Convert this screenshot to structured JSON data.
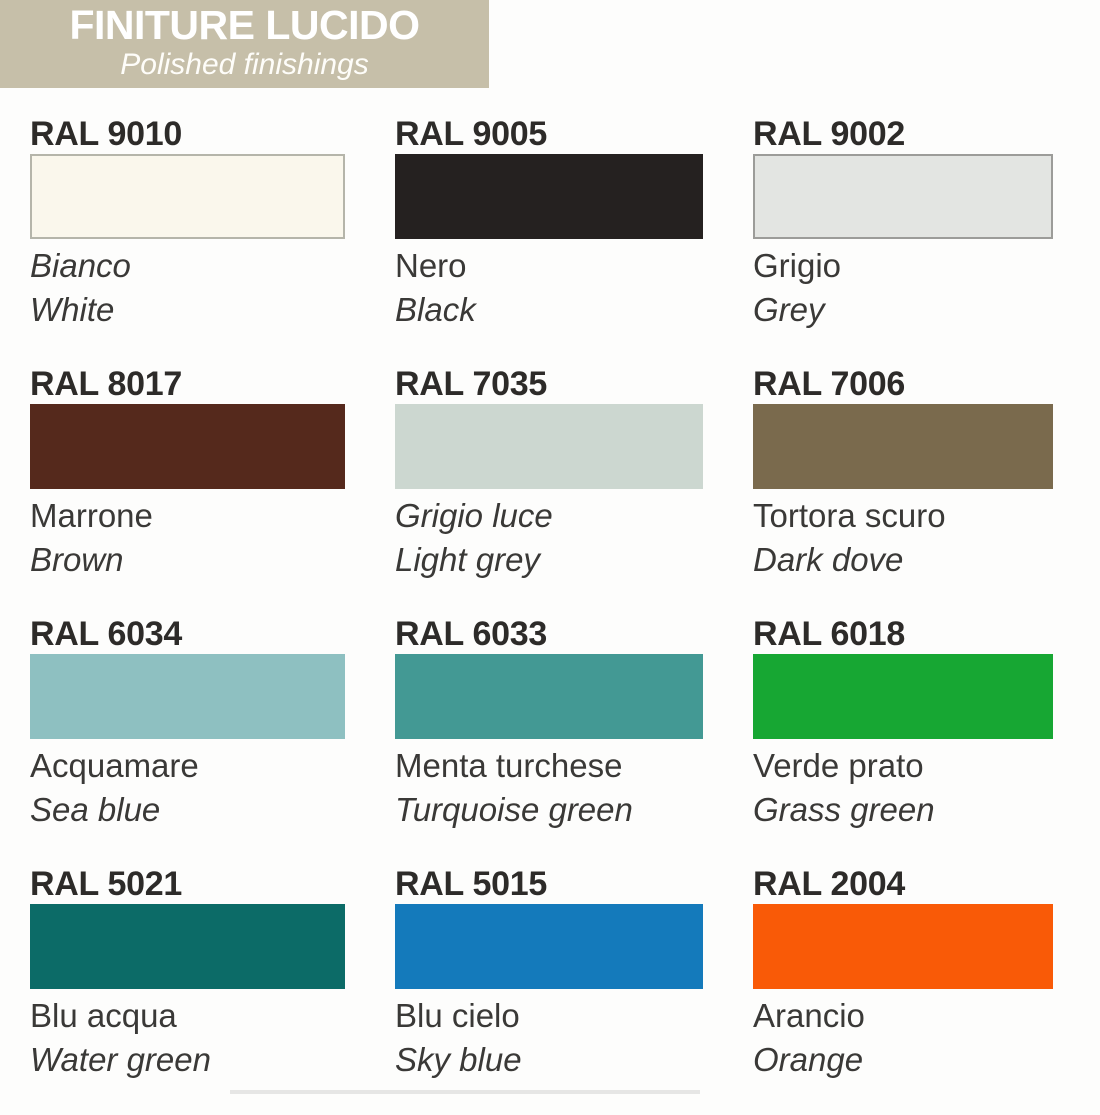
{
  "header": {
    "title": "FINITURE LUCIDO",
    "subtitle": "Polished finishings",
    "background": "#c6bfa9",
    "text_color": "#ffffff"
  },
  "swatches": [
    {
      "code": "RAL 9010",
      "name_it": "Bianco",
      "name_en": "White",
      "color": "#faf7ec",
      "border": "#b5b5aa",
      "name_it_style": "italic"
    },
    {
      "code": "RAL 9005",
      "name_it": "Nero",
      "name_en": "Black",
      "color": "#252120",
      "border": "",
      "name_it_style": "normal"
    },
    {
      "code": "RAL 9002",
      "name_it": "Grigio",
      "name_en": "Grey",
      "color": "#e3e5e2",
      "border": "#9c9c99",
      "name_it_style": "normal"
    },
    {
      "code": "RAL 8017",
      "name_it": "Marrone",
      "name_en": "Brown",
      "color": "#55291c",
      "border": "",
      "name_it_style": "normal"
    },
    {
      "code": "RAL 7035",
      "name_it": "Grigio luce",
      "name_en": "Light grey",
      "color": "#ccd7d0",
      "border": "",
      "name_it_style": "italic"
    },
    {
      "code": "RAL 7006",
      "name_it": "Tortora scuro",
      "name_en": "Dark dove",
      "color": "#7a6a4d",
      "border": "",
      "name_it_style": "normal"
    },
    {
      "code": "RAL 6034",
      "name_it": "Acquamare",
      "name_en": "Sea blue",
      "color": "#8ec0c1",
      "border": "",
      "name_it_style": "normal"
    },
    {
      "code": "RAL 6033",
      "name_it": "Menta turchese",
      "name_en": "Turquoise green",
      "color": "#439994",
      "border": "",
      "name_it_style": "normal"
    },
    {
      "code": "RAL 6018",
      "name_it": "Verde prato",
      "name_en": "Grass green",
      "color": "#17a733",
      "border": "",
      "name_it_style": "normal"
    },
    {
      "code": "RAL 5021",
      "name_it": "Blu acqua",
      "name_en": "Water green",
      "color": "#0c6b67",
      "border": "",
      "name_it_style": "normal"
    },
    {
      "code": "RAL 5015",
      "name_it": "Blu cielo",
      "name_en": "Sky blue",
      "color": "#147abb",
      "border": "",
      "name_it_style": "normal"
    },
    {
      "code": "RAL 2004",
      "name_it": "Arancio",
      "name_en": "Orange",
      "color": "#f95a07",
      "border": "",
      "name_it_style": "normal"
    }
  ]
}
